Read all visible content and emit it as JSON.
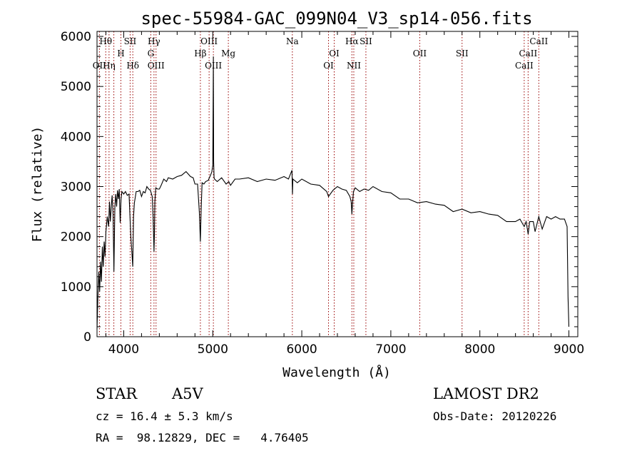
{
  "chart_data": {
    "type": "line",
    "title": "spec-55984-GAC_099N04_V3_sp14-056.fits",
    "xlabel": "Wavelength (Å)",
    "ylabel": "Flux (relative)",
    "xlim": [
      3700,
      9100
    ],
    "ylim": [
      0,
      6100
    ],
    "xticks": [
      4000,
      5000,
      6000,
      7000,
      8000,
      9000
    ],
    "yticks": [
      0,
      1000,
      2000,
      3000,
      4000,
      5000,
      6000
    ],
    "series": [
      {
        "x": [
          3700,
          3710,
          3720,
          3730,
          3740,
          3750,
          3760,
          3770,
          3780,
          3790,
          3800,
          3815,
          3830,
          3840,
          3850,
          3860,
          3870,
          3880,
          3890,
          3900,
          3910,
          3920,
          3930,
          3940,
          3950,
          3960,
          3970,
          3980,
          3990,
          4000,
          4020,
          4040,
          4060,
          4080,
          4090,
          4101,
          4110,
          4120,
          4140,
          4160,
          4180,
          4200,
          4220,
          4240,
          4260,
          4280,
          4300,
          4320,
          4330,
          4340,
          4345,
          4350,
          4360,
          4380,
          4400,
          4420,
          4450,
          4480,
          4500,
          4550,
          4600,
          4650,
          4700,
          4750,
          4780,
          4800,
          4830,
          4850,
          4861,
          4870,
          4880,
          4900,
          4920,
          4950,
          4980,
          4990,
          5000,
          5007,
          5010,
          5015,
          5020,
          5050,
          5100,
          5150,
          5180,
          5200,
          5250,
          5300,
          5400,
          5500,
          5600,
          5700,
          5800,
          5850,
          5890,
          5895,
          5900,
          5950,
          6000,
          6100,
          6200,
          6280,
          6300,
          6350,
          6400,
          6450,
          6500,
          6540,
          6555,
          6563,
          6570,
          6580,
          6600,
          6650,
          6700,
          6750,
          6800,
          6900,
          7000,
          7100,
          7200,
          7300,
          7400,
          7500,
          7600,
          7700,
          7800,
          7900,
          8000,
          8100,
          8200,
          8300,
          8400,
          8450,
          8498,
          8520,
          8542,
          8560,
          8600,
          8620,
          8662,
          8700,
          8750,
          8800,
          8850,
          8900,
          8950,
          8980,
          8990,
          9000
        ],
        "y": [
          150,
          800,
          1300,
          900,
          1500,
          1100,
          1800,
          1400,
          1900,
          1600,
          2100,
          2400,
          2200,
          2700,
          2300,
          2600,
          2800,
          2500,
          1300,
          2600,
          2800,
          2600,
          2900,
          2800,
          2950,
          2300,
          2700,
          2900,
          2850,
          2900,
          2900,
          2850,
          2800,
          2000,
          1700,
          1400,
          2400,
          2700,
          2850,
          2900,
          2900,
          2850,
          2900,
          2900,
          2950,
          2950,
          2900,
          2850,
          2400,
          1700,
          2000,
          2700,
          2950,
          3000,
          2950,
          3050,
          3100,
          3100,
          3150,
          3200,
          3200,
          3250,
          3250,
          3200,
          3150,
          3100,
          3050,
          2500,
          1900,
          2550,
          3050,
          3100,
          3100,
          3150,
          3200,
          3300,
          3400,
          5600,
          3500,
          3200,
          3100,
          3100,
          3150,
          3100,
          3100,
          3050,
          3100,
          3150,
          3150,
          3150,
          3150,
          3150,
          3150,
          3150,
          3300,
          2900,
          3150,
          3100,
          3100,
          3050,
          3000,
          2950,
          2800,
          2950,
          2950,
          2950,
          2900,
          2850,
          2700,
          2450,
          2600,
          2900,
          2950,
          2950,
          2950,
          2950,
          2950,
          2900,
          2850,
          2800,
          2750,
          2700,
          2650,
          2650,
          2600,
          2550,
          2550,
          2500,
          2450,
          2450,
          2400,
          2350,
          2300,
          2350,
          2200,
          2300,
          2050,
          2300,
          2300,
          2100,
          2400,
          2150,
          2400,
          2350,
          2400,
          2350,
          2350,
          2200,
          800,
          200
        ]
      }
    ],
    "line_labels": [
      {
        "name": "Hθ",
        "wl": 3798,
        "row": 1
      },
      {
        "name": "OII",
        "wl": 3727,
        "row": 3
      },
      {
        "name": "Hη",
        "wl": 3835,
        "row": 3
      },
      {
        "name": "H",
        "wl": 3968,
        "row": 2
      },
      {
        "name": "SII",
        "wl": 4072,
        "row": 1
      },
      {
        "name": "Hδ",
        "wl": 4102,
        "row": 3
      },
      {
        "name": "Hγ",
        "wl": 4340,
        "row": 1
      },
      {
        "name": "G",
        "wl": 4304,
        "row": 2
      },
      {
        "name": "OIII",
        "wl": 4363,
        "row": 3
      },
      {
        "name": "OIII",
        "wl": 4959,
        "row": 1
      },
      {
        "name": "Hβ",
        "wl": 4861,
        "row": 2
      },
      {
        "name": "OIII",
        "wl": 5007,
        "row": 3
      },
      {
        "name": "Mg",
        "wl": 5175,
        "row": 2
      },
      {
        "name": "Na",
        "wl": 5894,
        "row": 1
      },
      {
        "name": "OI",
        "wl": 6364,
        "row": 2
      },
      {
        "name": "OI",
        "wl": 6300,
        "row": 3
      },
      {
        "name": "Hα",
        "wl": 6563,
        "row": 1
      },
      {
        "name": "SII",
        "wl": 6720,
        "row": 1
      },
      {
        "name": "NII",
        "wl": 6584,
        "row": 3
      },
      {
        "name": "OII",
        "wl": 7325,
        "row": 2
      },
      {
        "name": "SII",
        "wl": 7800,
        "row": 2
      },
      {
        "name": "CaII",
        "wl": 8662,
        "row": 1
      },
      {
        "name": "CaII",
        "wl": 8542,
        "row": 2
      },
      {
        "name": "CaII",
        "wl": 8498,
        "row": 3
      }
    ],
    "line_positions": [
      3727,
      3798,
      3835,
      3889,
      3968,
      4072,
      4102,
      4304,
      4340,
      4363,
      4861,
      4959,
      5007,
      5175,
      5894,
      6300,
      6364,
      6563,
      6584,
      6720,
      7325,
      7800,
      8498,
      8542,
      8662
    ],
    "grid": false,
    "colors": {
      "spectrum": "#000000",
      "line_markers": "#990000"
    }
  },
  "info": {
    "object_type": "STAR",
    "subclass": "A5V",
    "survey": "LAMOST DR2",
    "redshift": "cz = 16.4 ± 5.3 km/s",
    "obs_date": "Obs-Date: 20120226",
    "coords": "RA =  98.12829, DEC =   4.76405"
  }
}
